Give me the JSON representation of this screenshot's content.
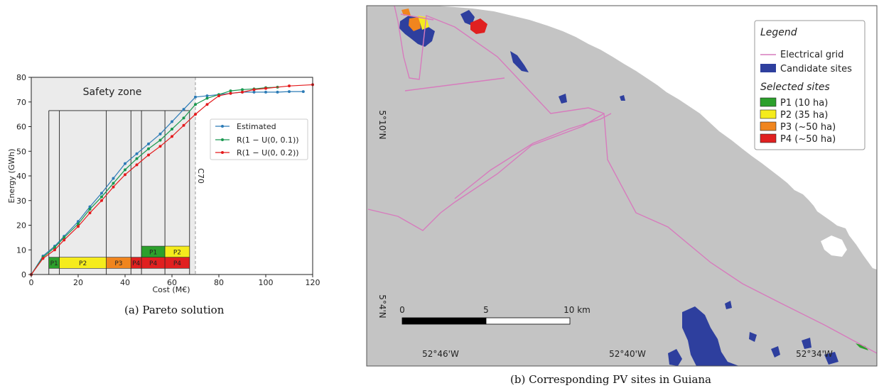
{
  "chart_data": {
    "type": "line",
    "xlabel": "Cost (M€)",
    "ylabel": "Energy (GWh)",
    "xlim": [
      0,
      120
    ],
    "ylim": [
      0,
      80
    ],
    "xticks": [
      0,
      20,
      40,
      60,
      80,
      100,
      120
    ],
    "yticks": [
      0,
      10,
      20,
      30,
      40,
      50,
      60,
      70,
      80
    ],
    "grid": false,
    "legend_position": "center-right",
    "zone_label": "Safety zone",
    "c70_label": "C70",
    "c70_x": 70,
    "series": [
      {
        "name": "Estimated",
        "color": "#2c7bb6",
        "x": [
          0,
          5,
          10,
          14,
          20,
          25,
          30,
          35,
          40,
          45,
          50,
          55,
          60,
          65,
          70,
          75,
          80,
          85,
          90,
          95,
          100,
          105,
          110,
          116
        ],
        "y": [
          0,
          7.5,
          11.5,
          15.5,
          21.5,
          27.5,
          33,
          39,
          45,
          49,
          53,
          57,
          62,
          67,
          72,
          72.5,
          73,
          73.5,
          74,
          74,
          74,
          74,
          74.2,
          74.2
        ]
      },
      {
        "name": "R(1 − U(0, 0.1))",
        "color": "#1a9850",
        "x": [
          0,
          5,
          10,
          14,
          20,
          25,
          30,
          35,
          40,
          45,
          50,
          55,
          60,
          65,
          70,
          75,
          80,
          85,
          90,
          95,
          100,
          105
        ],
        "y": [
          0,
          7,
          11,
          15,
          20.5,
          26.5,
          31.5,
          37,
          42.5,
          47,
          51,
          54.5,
          59,
          63.5,
          69,
          71.5,
          73,
          74.5,
          75,
          75.3,
          75.8,
          76
        ]
      },
      {
        "name": "R(1 − U(0, 0.2))",
        "color": "#e41a1c",
        "x": [
          0,
          5,
          10,
          14,
          20,
          25,
          30,
          35,
          40,
          45,
          50,
          55,
          60,
          65,
          70,
          75,
          80,
          85,
          90,
          95,
          100,
          110,
          120
        ],
        "y": [
          0,
          6.5,
          10,
          14,
          19.5,
          25,
          30,
          35.5,
          40.5,
          44.5,
          48.5,
          52,
          56,
          60.5,
          65,
          69,
          72.5,
          73.5,
          74,
          75,
          75.5,
          76.5,
          77
        ]
      }
    ],
    "bracket_top": 66.5,
    "bracket_lines_x": [
      7.5,
      12,
      32,
      42.5,
      47,
      57,
      67.5
    ],
    "segments_lower": [
      {
        "label": "P1",
        "x0": 7.5,
        "x1": 12,
        "color": "#2ca02c"
      },
      {
        "label": "P2",
        "x0": 12,
        "x1": 32,
        "color": "#f5ec1c"
      },
      {
        "label": "P3",
        "x0": 32,
        "x1": 42.5,
        "color": "#f0851e"
      },
      {
        "label": "P4",
        "x0": 42.5,
        "x1": 47,
        "color": "#e02020"
      },
      {
        "label": "P4",
        "x0": 47,
        "x1": 57,
        "color": "#e02020"
      },
      {
        "label": "P4",
        "x0": 57,
        "x1": 67.5,
        "color": "#e02020"
      }
    ],
    "segments_upper": [
      {
        "label": "P1",
        "x0": 47,
        "x1": 57,
        "color": "#2ca02c"
      },
      {
        "label": "P2",
        "x0": 57,
        "x1": 67.5,
        "color": "#f5ec1c"
      }
    ]
  },
  "captions": {
    "left": "(a) Pareto solution",
    "right": "(b) Corresponding PV sites in Guiana"
  },
  "map": {
    "legend_title": "Legend",
    "grid_label": "Electrical grid",
    "candidate_label": "Candidate sites",
    "selected_title": "Selected sites",
    "sites": [
      {
        "label": "P1 (10 ha)",
        "color": "#2ca02c"
      },
      {
        "label": "P2 (35 ha)",
        "color": "#f5ec1c"
      },
      {
        "label": "P3 (~50 ha)",
        "color": "#f0851e"
      },
      {
        "label": "P4 (~50 ha)",
        "color": "#e02020"
      }
    ],
    "colors": {
      "land": "#c4c4c4",
      "sea": "#ffffff",
      "candidate": "#2e3f9e",
      "grid": "#d77bbd"
    },
    "lat_labels": [
      "5°10'N",
      "5°4'N"
    ],
    "lon_labels": [
      "52°46'W",
      "52°40'W",
      "52°34'W"
    ],
    "scale_labels": [
      "0",
      "5",
      "10 km"
    ]
  }
}
